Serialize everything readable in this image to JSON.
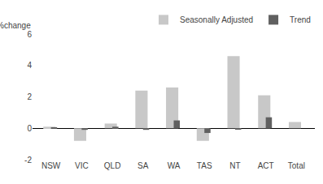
{
  "chart_data": {
    "type": "bar",
    "ylabel": "%change",
    "categories": [
      "NSW",
      "VIC",
      "QLD",
      "SA",
      "WA",
      "TAS",
      "NT",
      "ACT",
      "Total"
    ],
    "series": [
      {
        "name": "Seasonally Adjusted",
        "color": "#c8c8c8",
        "values": [
          0.1,
          -0.8,
          0.3,
          2.4,
          2.6,
          -0.8,
          4.6,
          2.1,
          0.4
        ]
      },
      {
        "name": "Trend",
        "color": "#606060",
        "values": [
          0.05,
          -0.1,
          0.1,
          -0.1,
          0.5,
          -0.3,
          -0.05,
          0.7,
          0.0
        ]
      }
    ],
    "ylim": [
      -2,
      6
    ],
    "yticks": [
      -2,
      0,
      2,
      4,
      6
    ],
    "grid": false,
    "legend": "upper right"
  }
}
